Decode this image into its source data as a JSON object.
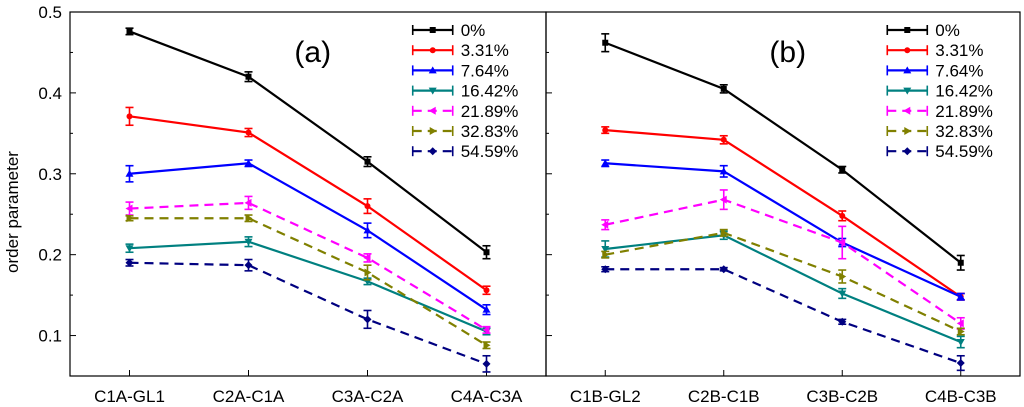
{
  "chart_data": {
    "type": "line",
    "ylabel": "order parameter",
    "ylim": [
      0.05,
      0.5
    ],
    "yticks": [
      0.1,
      0.2,
      0.3,
      0.4,
      0.5
    ],
    "ytick_labels": [
      "0.1",
      "0.2",
      "0.3",
      "0.4",
      "0.5"
    ],
    "legend_position": "top-right",
    "series_styles": [
      {
        "name": "0%",
        "color": "#000000",
        "dash": "solid",
        "marker": "square"
      },
      {
        "name": "3.31%",
        "color": "#ff0000",
        "dash": "solid",
        "marker": "circle"
      },
      {
        "name": "7.64%",
        "color": "#0000ff",
        "dash": "solid",
        "marker": "triangle-up"
      },
      {
        "name": "16.42%",
        "color": "#008080",
        "dash": "solid",
        "marker": "triangle-down"
      },
      {
        "name": "21.89%",
        "color": "#ff00ff",
        "dash": "dash",
        "marker": "triangle-left"
      },
      {
        "name": "32.83%",
        "color": "#808000",
        "dash": "dash",
        "marker": "triangle-right"
      },
      {
        "name": "54.59%",
        "color": "#000080",
        "dash": "dash",
        "marker": "diamond"
      }
    ],
    "panels": [
      {
        "title": "(a)",
        "categories": [
          "C1A-GL1",
          "C2A-C1A",
          "C3A-C2A",
          "C4A-C3A"
        ],
        "series": [
          {
            "name": "0%",
            "values": [
              0.476,
              0.42,
              0.315,
              0.203
            ],
            "errors": [
              0.004,
              0.006,
              0.006,
              0.008
            ]
          },
          {
            "name": "3.31%",
            "values": [
              0.371,
              0.351,
              0.26,
              0.156
            ],
            "errors": [
              0.011,
              0.005,
              0.009,
              0.005
            ]
          },
          {
            "name": "7.64%",
            "values": [
              0.3,
              0.313,
              0.23,
              0.132
            ],
            "errors": [
              0.01,
              0.004,
              0.009,
              0.006
            ]
          },
          {
            "name": "16.42%",
            "values": [
              0.208,
              0.216,
              0.167,
              0.105
            ],
            "errors": [
              0.005,
              0.006,
              0.004,
              0.004
            ]
          },
          {
            "name": "21.89%",
            "values": [
              0.257,
              0.264,
              0.196,
              0.107
            ],
            "errors": [
              0.008,
              0.008,
              0.005,
              0.004
            ]
          },
          {
            "name": "32.83%",
            "values": [
              0.245,
              0.245,
              0.178,
              0.088
            ],
            "errors": [
              0.003,
              0.004,
              0.009,
              0.004
            ]
          },
          {
            "name": "54.59%",
            "values": [
              0.19,
              0.187,
              0.12,
              0.065
            ],
            "errors": [
              0.004,
              0.007,
              0.011,
              0.01
            ]
          }
        ]
      },
      {
        "title": "(b)",
        "categories": [
          "C1B-GL2",
          "C2B-C1B",
          "C3B-C2B",
          "C4B-C3B"
        ],
        "series": [
          {
            "name": "0%",
            "values": [
              0.462,
              0.405,
              0.305,
              0.19
            ],
            "errors": [
              0.011,
              0.005,
              0.004,
              0.009
            ]
          },
          {
            "name": "3.31%",
            "values": [
              0.354,
              0.342,
              0.248,
              0.148
            ],
            "errors": [
              0.004,
              0.005,
              0.006,
              0.004
            ]
          },
          {
            "name": "7.64%",
            "values": [
              0.313,
              0.303,
              0.215,
              0.148
            ],
            "errors": [
              0.004,
              0.007,
              0.005,
              0.004
            ]
          },
          {
            "name": "16.42%",
            "values": [
              0.207,
              0.224,
              0.152,
              0.092
            ],
            "errors": [
              0.01,
              0.005,
              0.006,
              0.007
            ]
          },
          {
            "name": "21.89%",
            "values": [
              0.237,
              0.268,
              0.215,
              0.115
            ],
            "errors": [
              0.006,
              0.012,
              0.02,
              0.007
            ]
          },
          {
            "name": "32.83%",
            "values": [
              0.2,
              0.227,
              0.173,
              0.105
            ],
            "errors": [
              0.004,
              0.004,
              0.008,
              0.004
            ]
          },
          {
            "name": "54.59%",
            "values": [
              0.182,
              0.182,
              0.117,
              0.066
            ],
            "errors": [
              0.003,
              0.002,
              0.003,
              0.009
            ]
          }
        ]
      }
    ]
  }
}
